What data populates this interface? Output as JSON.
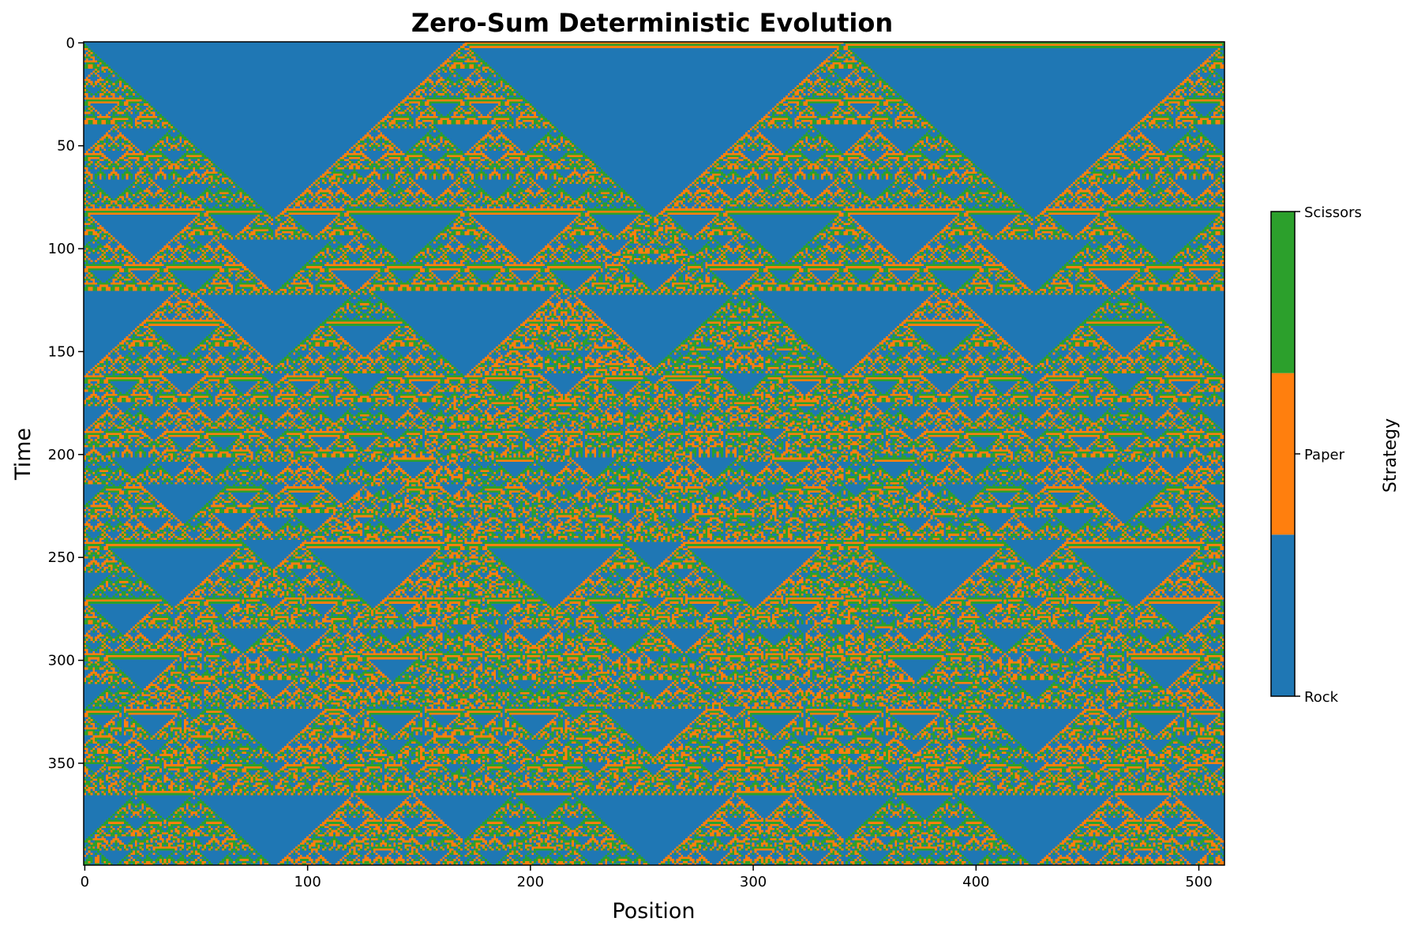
{
  "chart_data": {
    "type": "heatmap",
    "title": "Zero-Sum Deterministic Evolution",
    "xlabel": "Position",
    "ylabel": "Time",
    "xlim": [
      0,
      511
    ],
    "ylim": [
      399,
      0
    ],
    "width_cells": 512,
    "height_steps": 400,
    "x_ticks": [
      0,
      100,
      200,
      300,
      400,
      500
    ],
    "y_ticks": [
      0,
      50,
      100,
      150,
      200,
      250,
      300,
      350
    ],
    "initial_blocks": [
      {
        "state": "Rock",
        "from": 0,
        "to": 170
      },
      {
        "state": "Paper",
        "from": 171,
        "to": 340
      },
      {
        "state": "Scissors",
        "from": 341,
        "to": 511
      }
    ],
    "states": [
      {
        "name": "Rock",
        "value": 0,
        "color": "#1f77b4"
      },
      {
        "name": "Paper",
        "value": 1,
        "color": "#ff7f0e"
      },
      {
        "name": "Scissors",
        "value": 2,
        "color": "#2ca02c"
      }
    ],
    "colorbar": {
      "label": "Strategy",
      "tick_labels": [
        "Rock",
        "Paper",
        "Scissors"
      ]
    }
  }
}
